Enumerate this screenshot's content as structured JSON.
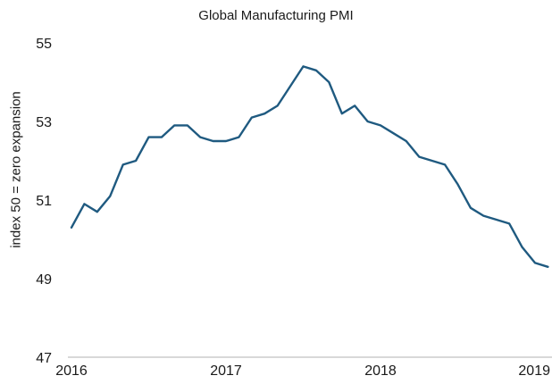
{
  "chart_data": {
    "type": "line",
    "title": "Global Manufacturing PMI",
    "xlabel": "",
    "ylabel": "index 50 = zero expansion",
    "ylim": [
      47,
      55
    ],
    "yticks": [
      47,
      49,
      51,
      53,
      55
    ],
    "xlim": [
      "2016-01",
      "2019-02"
    ],
    "xticks": [
      "2016",
      "2017",
      "2018",
      "2019"
    ],
    "grid": false,
    "colors": {
      "line": "#1f5a80",
      "axis": "#cccccc",
      "text": "#1a1a1a"
    },
    "series": [
      {
        "x": [
          "2016-01",
          "2016-02",
          "2016-03",
          "2016-04",
          "2016-05",
          "2016-06",
          "2016-07",
          "2016-08",
          "2016-09",
          "2016-10",
          "2016-11",
          "2016-12",
          "2017-01",
          "2017-02",
          "2017-03",
          "2017-04",
          "2017-05",
          "2017-06",
          "2017-07",
          "2017-08",
          "2017-09",
          "2017-10",
          "2017-11",
          "2017-12",
          "2018-01",
          "2018-02",
          "2018-03",
          "2018-04",
          "2018-05",
          "2018-06",
          "2018-07",
          "2018-08",
          "2018-09",
          "2018-10",
          "2018-11",
          "2018-12",
          "2019-01",
          "2019-02"
        ],
        "values": [
          50.3,
          50.9,
          50.7,
          51.1,
          51.9,
          52.0,
          52.6,
          52.6,
          52.9,
          52.9,
          52.6,
          52.5,
          52.5,
          52.6,
          53.1,
          53.2,
          53.4,
          53.9,
          54.4,
          54.3,
          54.0,
          53.2,
          53.4,
          53.0,
          52.9,
          52.7,
          52.5,
          52.1,
          52.0,
          51.9,
          51.4,
          50.8,
          50.6,
          50.5,
          50.4,
          49.8,
          49.4,
          49.3
        ]
      }
    ]
  }
}
